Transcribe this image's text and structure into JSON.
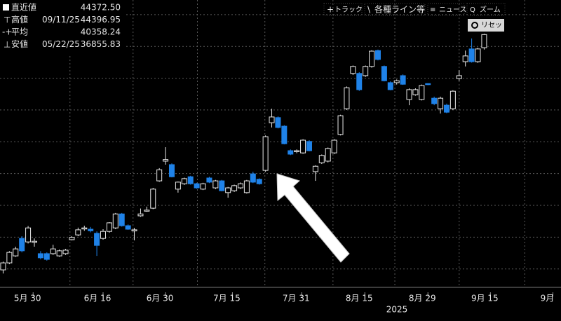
{
  "chart_data": {
    "type": "candlestick",
    "toolbar": [
      "トラック",
      "各種ライン等",
      "ニュース",
      "ズーム"
    ],
    "reset_button": "リセット",
    "legend": [
      {
        "label": "直近値",
        "value": "44372.50"
      },
      {
        "label": "高値",
        "date": "09/11/25",
        "value": "44396.95"
      },
      {
        "label": "平均",
        "value": "40358.24"
      },
      {
        "label": "安値",
        "date": "05/22/25",
        "value": "36855.83"
      }
    ],
    "up_color": "#e8e8e8",
    "down_color": "#1f82e8",
    "ylim": [
      36420,
      45460
    ],
    "ygrid": [
      37000,
      38000,
      39000,
      40000,
      41000,
      42000,
      43000,
      44000,
      45000
    ],
    "xlim": [
      -0.5,
      89.3
    ],
    "xgrid": [
      10.7,
      20.8,
      31.1,
      41.9,
      52.8,
      62.7,
      73,
      83.5
    ],
    "xticks": [
      {
        "value": 4.8,
        "label": "5月 30"
      },
      {
        "value": 16,
        "label": "6月 16"
      },
      {
        "value": 26,
        "label": "6月 30"
      },
      {
        "value": 36.7,
        "label": "7月 15"
      },
      {
        "value": 47.8,
        "label": "7月 31"
      },
      {
        "value": 57.9,
        "label": "8月 15"
      },
      {
        "value": 68,
        "label": "8月 29"
      },
      {
        "value": 78,
        "label": "9月 15"
      },
      {
        "value": 88,
        "label": "9月"
      }
    ],
    "year_label": "2025",
    "ohlc": [
      [
        36970,
        37230,
        36855.83,
        37190
      ],
      [
        37190,
        37560,
        37150,
        37520
      ],
      [
        37410,
        37700,
        37380,
        37630
      ],
      [
        37960,
        38030,
        37520,
        37570
      ],
      [
        37850,
        38350,
        37800,
        38290
      ],
      [
        37850,
        37960,
        37700,
        37870
      ],
      [
        37480,
        37560,
        37300,
        37350
      ],
      [
        37480,
        37520,
        37260,
        37300
      ],
      [
        37480,
        37760,
        37440,
        37630
      ],
      [
        37410,
        37610,
        37380,
        37570
      ],
      [
        37480,
        37630,
        37440,
        37590
      ],
      [
        37920,
        38030,
        37900,
        37990
      ],
      [
        38070,
        38300,
        38030,
        38230
      ],
      [
        38270,
        38360,
        38200,
        38290
      ],
      [
        38250,
        38320,
        38150,
        38200
      ],
      [
        38120,
        38180,
        37410,
        37740
      ],
      [
        37960,
        38250,
        37920,
        38180
      ],
      [
        38180,
        38470,
        38140,
        38450
      ],
      [
        38290,
        38760,
        38250,
        38730
      ],
      [
        38730,
        38760,
        38330,
        38360
      ],
      [
        38360,
        38400,
        38230,
        38250
      ],
      [
        38200,
        38290,
        37900,
        38230
      ],
      [
        38670,
        38900,
        38640,
        38730
      ],
      [
        38830,
        38960,
        38800,
        38850
      ],
      [
        38910,
        39550,
        38880,
        39510
      ],
      [
        39770,
        40170,
        39740,
        40120
      ],
      [
        40390,
        40830,
        40280,
        40440
      ],
      [
        40280,
        40320,
        39880,
        39900
      ],
      [
        39510,
        39750,
        39400,
        39730
      ],
      [
        39680,
        39870,
        39640,
        39840
      ],
      [
        39900,
        39930,
        39650,
        39680
      ],
      [
        39680,
        39710,
        39520,
        39550
      ],
      [
        39510,
        39710,
        39480,
        39680
      ],
      [
        39860,
        39900,
        39700,
        39730
      ],
      [
        39550,
        39800,
        39510,
        39770
      ],
      [
        39770,
        39800,
        39440,
        39460
      ],
      [
        39400,
        39580,
        39240,
        39550
      ],
      [
        39460,
        39650,
        39420,
        39620
      ],
      [
        39550,
        39720,
        39510,
        39680
      ],
      [
        39400,
        39800,
        39370,
        39770
      ],
      [
        39990,
        40060,
        39700,
        39730
      ],
      [
        39820,
        39850,
        39650,
        39680
      ],
      [
        40100,
        41200,
        40060,
        41160
      ],
      [
        41600,
        42040,
        41450,
        41780
      ],
      [
        41760,
        41800,
        41420,
        41450
      ],
      [
        41490,
        41520,
        40920,
        40940
      ],
      [
        40720,
        40760,
        40580,
        40610
      ],
      [
        40700,
        40760,
        40640,
        40720
      ],
      [
        40650,
        41080,
        40620,
        41050
      ],
      [
        41010,
        41050,
        40700,
        40720
      ],
      [
        40060,
        40260,
        39770,
        40230
      ],
      [
        40340,
        40600,
        40300,
        40570
      ],
      [
        40390,
        40820,
        40350,
        40790
      ],
      [
        40650,
        41080,
        40620,
        41050
      ],
      [
        41230,
        41850,
        41200,
        41820
      ],
      [
        42040,
        42740,
        42000,
        42700
      ],
      [
        43150,
        43400,
        43100,
        43370
      ],
      [
        43150,
        43190,
        42600,
        42640
      ],
      [
        43080,
        43400,
        43040,
        43370
      ],
      [
        43370,
        43880,
        43330,
        43850
      ],
      [
        43870,
        43900,
        43560,
        43590
      ],
      [
        43370,
        43400,
        42900,
        42920
      ],
      [
        42860,
        42900,
        42620,
        42640
      ],
      [
        42860,
        42960,
        42800,
        42920
      ],
      [
        43080,
        43120,
        42790,
        42810
      ],
      [
        42330,
        42680,
        42150,
        42640
      ],
      [
        42480,
        42680,
        42450,
        42640
      ],
      [
        42330,
        42800,
        42300,
        42770
      ],
      [
        42830,
        42840,
        42780,
        42800
      ],
      [
        42370,
        42420,
        42150,
        42200
      ],
      [
        42040,
        42420,
        41890,
        42370
      ],
      [
        42150,
        42200,
        41900,
        41930
      ],
      [
        42040,
        42620,
        42000,
        42590
      ],
      [
        42990,
        43250,
        42920,
        43080
      ],
      [
        43520,
        43870,
        43370,
        43700
      ],
      [
        43920,
        44250,
        43490,
        43520
      ],
      [
        43520,
        43960,
        43480,
        43920
      ],
      [
        43960,
        44396.95,
        43900,
        44372.5
      ]
    ]
  }
}
